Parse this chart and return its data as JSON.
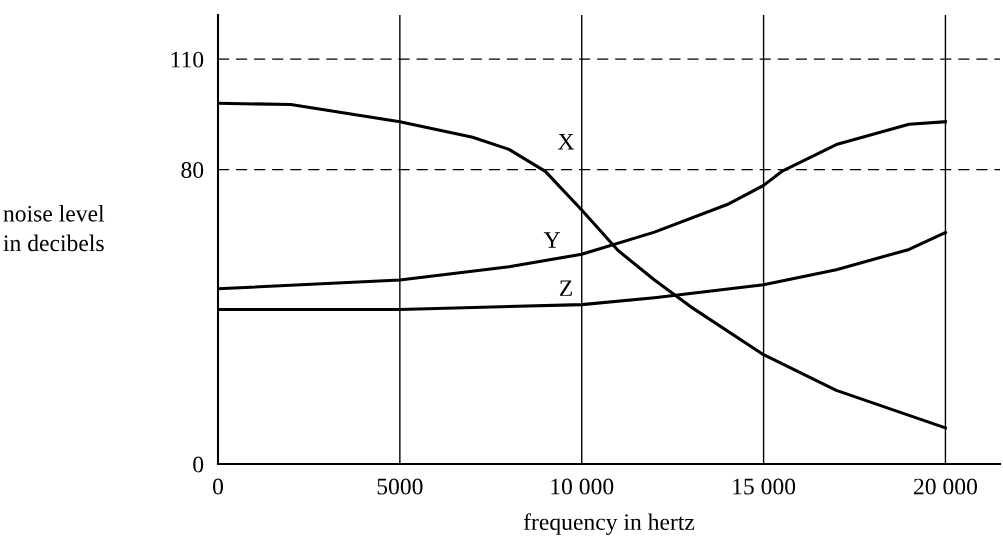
{
  "chart_data": {
    "type": "line",
    "xlabel": "frequency in hertz",
    "ylabel": "noise level\nin decibels",
    "xlim": [
      0,
      21500
    ],
    "ylim": [
      0,
      122
    ],
    "xticks": [
      0,
      5000,
      {
        "value": 10000,
        "label": "10 000"
      },
      {
        "value": 15000,
        "label": "15 000"
      },
      {
        "value": 20000,
        "label": "20 000"
      }
    ],
    "yticks": [
      0,
      80,
      110
    ],
    "grid": "x",
    "legend": false,
    "marker": "none",
    "line_style": "solid",
    "series": [
      {
        "name": "X",
        "color": "#000000",
        "x": [
          0,
          2000,
          5000,
          7000,
          8000,
          9000,
          10000,
          11000,
          12000,
          13000,
          15000,
          17000,
          20000
        ],
        "values": [
          98,
          97.7,
          93,
          88.8,
          85.5,
          79.5,
          69,
          58,
          50,
          42.7,
          29.7,
          20,
          9.8
        ]
      },
      {
        "name": "Y",
        "color": "#000000",
        "x": [
          0,
          5000,
          8000,
          10000,
          12000,
          14000,
          15000,
          15500,
          17000,
          19000,
          20000
        ],
        "values": [
          47.6,
          50,
          53.6,
          57,
          63,
          70.5,
          75.7,
          79.5,
          86.8,
          92.3,
          93
        ]
      },
      {
        "name": "Z",
        "color": "#000000",
        "x": [
          0,
          5000,
          10000,
          12000,
          15000,
          17000,
          19000,
          20000
        ],
        "values": [
          42,
          42,
          43.3,
          45.2,
          48.7,
          52.8,
          58.3,
          62.9
        ]
      }
    ],
    "ref_lines": [
      {
        "axis": "y",
        "value": 80,
        "line_style": "dashed",
        "color": "#000000"
      },
      {
        "axis": "y",
        "value": 110,
        "line_style": "dashed",
        "color": "#000000"
      }
    ]
  }
}
